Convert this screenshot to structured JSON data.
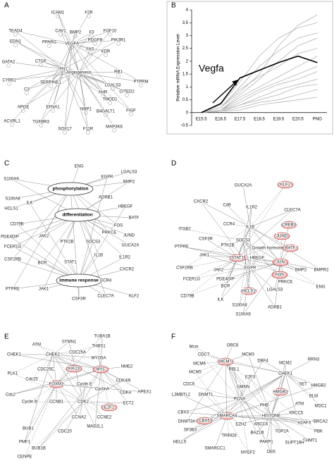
{
  "panels": {
    "a": {
      "label": "A",
      "nodes": [
        "ICAM1",
        "F2R",
        "TEAD4",
        "CAV1",
        "BMP2",
        "F3",
        "FGF10",
        "PDGFB",
        "PIK3R1",
        "EDN1",
        "PPARG",
        "VEGFA",
        "FAS",
        "KDR",
        "GATA2",
        "CTGF",
        "FN1",
        "Angiogenesis",
        "RB1",
        "PTPRM",
        "CITED2",
        "CYR61",
        "SERPINE1",
        "LGALS3",
        "C3",
        "AHR",
        "TMOD1",
        "APOE",
        "EFNA1",
        "NRP1",
        "B4GALT1",
        "FIGF",
        "ACVRL1",
        "TGFBR3",
        "SOX17",
        "F11R",
        "MAP3K6"
      ]
    },
    "c": {
      "label": "C",
      "processes": [
        "phosphorylation",
        "differentiation",
        "immune response"
      ],
      "nodes": [
        "ENG",
        "S100A9",
        "EGFR",
        "LGALS3",
        "BMP2",
        "ILK",
        "S100A8",
        "ADRB1",
        "HBEGF",
        "HCLS1",
        "BATF",
        "CD79B",
        "FOS",
        "JUND",
        "PDE4DIP",
        "JAK2",
        "PTK2B",
        "SOCS3",
        "PRKCE",
        "GUCA2A",
        "FCER1G",
        "CSF2RB",
        "BCR",
        "STAT1",
        "IL1B",
        "IL1R2",
        "CXCR2",
        "PTPRE",
        "JAK1",
        "CCR4",
        "CSF3R",
        "CLEC7A",
        "KLF2"
      ]
    },
    "d": {
      "label": "D",
      "nodes": [
        "KLF2",
        "GUCA2A",
        "CXCR2",
        "Cd9",
        "IL1R2",
        "CLEC7A",
        "CCR4",
        "IL1B",
        "CREB3",
        "ITGB2",
        "CSF3R",
        "SOCS3",
        "JUND",
        "PTPRE",
        "PTK2B",
        "Growth hormone",
        "BATF",
        "JAK1",
        "STAT1",
        "HBEGF",
        "JUN",
        "CSF2RB",
        "JAK2",
        "EGFR",
        "FOS",
        "BMP2",
        "BMPR2",
        "FCER1G",
        "PDE4DIP",
        "PRKCE",
        "ENG",
        "BCR",
        "LGALS3",
        "CD79B",
        "HCLS1",
        "ILK",
        "S100A8",
        "ADRB1",
        "S100A9"
      ]
    },
    "e": {
      "label": "E",
      "nodes": [
        "ATM",
        "STMN1",
        "TUBA1B",
        "THBS1",
        "CHEK1",
        "CHEK2",
        "CDC25A",
        "MYO5A",
        "NME2",
        "PLK1",
        "CDC25C",
        "KIF23",
        "MYC",
        "CDK4/6",
        "APEX1",
        "Cdc25",
        "FOXM1",
        "Cyclin E",
        "CyclinA",
        "CDK4",
        "Cdc2",
        "Cyclin B",
        "CCNB1",
        "CDK2",
        "E2F1",
        "ECT2",
        "CCNA2",
        "CCNE2",
        "MAD2L1",
        "CDC20",
        "BUB1",
        "PMF1",
        "BUB1B",
        "CENPE"
      ]
    },
    "f": {
      "label": "F",
      "nodes": [
        "Mcm",
        "ORC6",
        "MCM3",
        "CDC7",
        "MCM7",
        "DBF4",
        "MCM6",
        "MCM2",
        "RRN3",
        "MCM5",
        "RBL1",
        "CHEK1",
        "E2F3",
        "SET",
        "HMGB2",
        "CDC6",
        "GMNN",
        "HMGB1",
        "BLM",
        "L3MBTL2",
        "DNMT1",
        "PCNA",
        "ATM",
        "MDC1",
        "PHB",
        "CBX3",
        "DNMT3A",
        "HISTONE",
        "XRCC5",
        "H2AFX",
        "CBX5",
        "SMARCA4",
        "EZH2",
        "XRCC6",
        "BRCA2",
        "TOP2A",
        "PBK",
        "EHMT1",
        "SF3B3",
        "TRIM28",
        "BAZ1B",
        "PARP1",
        "SUPT16H",
        "HELLS",
        "SMARCC1",
        "MYEF2",
        "DEK"
      ]
    }
  },
  "chart_data": {
    "type": "line",
    "panel_label": "B",
    "ylabel": "Relative mRNA Expression Level",
    "annotation": "Vegfa",
    "categories": [
      "E15.5",
      "E16.5",
      "E17.5",
      "E18.5",
      "E19.5",
      "E20.5",
      "PNO"
    ],
    "ylim": [
      -0.5,
      4
    ],
    "yticks": [
      -0.5,
      0,
      0.5,
      1,
      1.5,
      2,
      2.5,
      3,
      3.5,
      4
    ],
    "series": [
      {
        "color": "#b5b5b5",
        "values": [
          0,
          0.2,
          0.8,
          1.5,
          2.6,
          3.4,
          3.8
        ]
      },
      {
        "color": "#b5b5b5",
        "values": [
          0,
          0.3,
          1.2,
          2.2,
          2.9,
          3.3,
          3.5
        ]
      },
      {
        "color": "#b5b5b5",
        "values": [
          0,
          0.2,
          1.0,
          1.8,
          2.4,
          2.9,
          3.1
        ]
      },
      {
        "color": "#b5b5b5",
        "values": [
          0,
          0.1,
          0.7,
          1.3,
          2.0,
          2.6,
          2.9
        ]
      },
      {
        "color": "#b5b5b5",
        "values": [
          0,
          0.2,
          0.9,
          1.4,
          1.8,
          2.3,
          2.5
        ]
      },
      {
        "color": "#b5b5b5",
        "values": [
          0,
          0.1,
          0.6,
          1.0,
          1.4,
          1.8,
          2.2
        ]
      },
      {
        "color": "#b5b5b5",
        "values": [
          0,
          0.1,
          0.5,
          0.9,
          1.2,
          1.5,
          1.8
        ]
      },
      {
        "color": "#b5b5b5",
        "values": [
          0,
          0.1,
          0.4,
          0.8,
          1.1,
          1.3,
          1.6
        ]
      },
      {
        "color": "#b5b5b5",
        "values": [
          0,
          0.1,
          0.3,
          0.6,
          0.9,
          1.1,
          1.3
        ]
      },
      {
        "color": "#b5b5b5",
        "values": [
          0,
          0.05,
          0.3,
          0.5,
          0.7,
          1.0,
          1.1
        ]
      },
      {
        "color": "#b5b5b5",
        "values": [
          0,
          0.05,
          0.2,
          0.4,
          0.5,
          0.7,
          0.9
        ]
      },
      {
        "color": "#b5b5b5",
        "values": [
          0,
          0.05,
          0.1,
          0.3,
          0.4,
          0.5,
          0.6
        ]
      },
      {
        "color": "#000000",
        "values": [
          0,
          0.35,
          1.35,
          1.65,
          1.95,
          2.2,
          1.95
        ]
      }
    ]
  }
}
